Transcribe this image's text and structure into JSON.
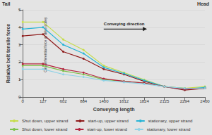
{
  "chart_data": {
    "type": "line",
    "x_label": "Conveying length",
    "y_label": "Relative belt tensile force",
    "annotations": [
      "Tail",
      "Head",
      "Conveying direction",
      "Circumferential force at drive pulley"
    ],
    "categories": [
      "0",
      "127",
      "602",
      "884",
      "1400",
      "1612",
      "1824",
      "2125",
      "2294",
      "2400"
    ],
    "ylim": [
      0,
      5
    ],
    "yticks": [
      0,
      1,
      2,
      3,
      4,
      5
    ],
    "grid": true,
    "marker": "circle",
    "series": [
      {
        "name": "Shut down, upper strand",
        "color": "#c6dd4c",
        "values": [
          4.3,
          4.3,
          3.3,
          2.7,
          1.8,
          1.4,
          1.0,
          0.6,
          0.5,
          0.6
        ]
      },
      {
        "name": "start-up, upper strand",
        "color": "#8e1b1b",
        "values": [
          3.5,
          3.6,
          2.6,
          2.2,
          1.6,
          1.3,
          0.9,
          0.6,
          0.4,
          0.5
        ]
      },
      {
        "name": "stationary, upper strand",
        "color": "#27b4d6",
        "values": [
          3.9,
          4.0,
          3.0,
          2.5,
          1.7,
          1.35,
          0.95,
          0.6,
          0.45,
          0.55
        ]
      },
      {
        "name": "Shut down, lower strand",
        "color": "#7cc24a",
        "values": [
          1.8,
          1.8,
          1.5,
          1.3,
          1.0,
          0.9,
          0.8,
          0.6,
          0.5,
          0.5
        ]
      },
      {
        "name": "start-up, lower strand",
        "color": "#b3233d",
        "values": [
          1.9,
          1.9,
          1.6,
          1.4,
          1.05,
          0.9,
          0.8,
          0.6,
          0.45,
          0.5
        ]
      },
      {
        "name": "stationary, lower strand",
        "color": "#8fd2e6",
        "values": [
          1.6,
          1.6,
          1.3,
          1.15,
          0.95,
          0.85,
          0.75,
          0.6,
          0.5,
          0.5
        ]
      }
    ]
  }
}
